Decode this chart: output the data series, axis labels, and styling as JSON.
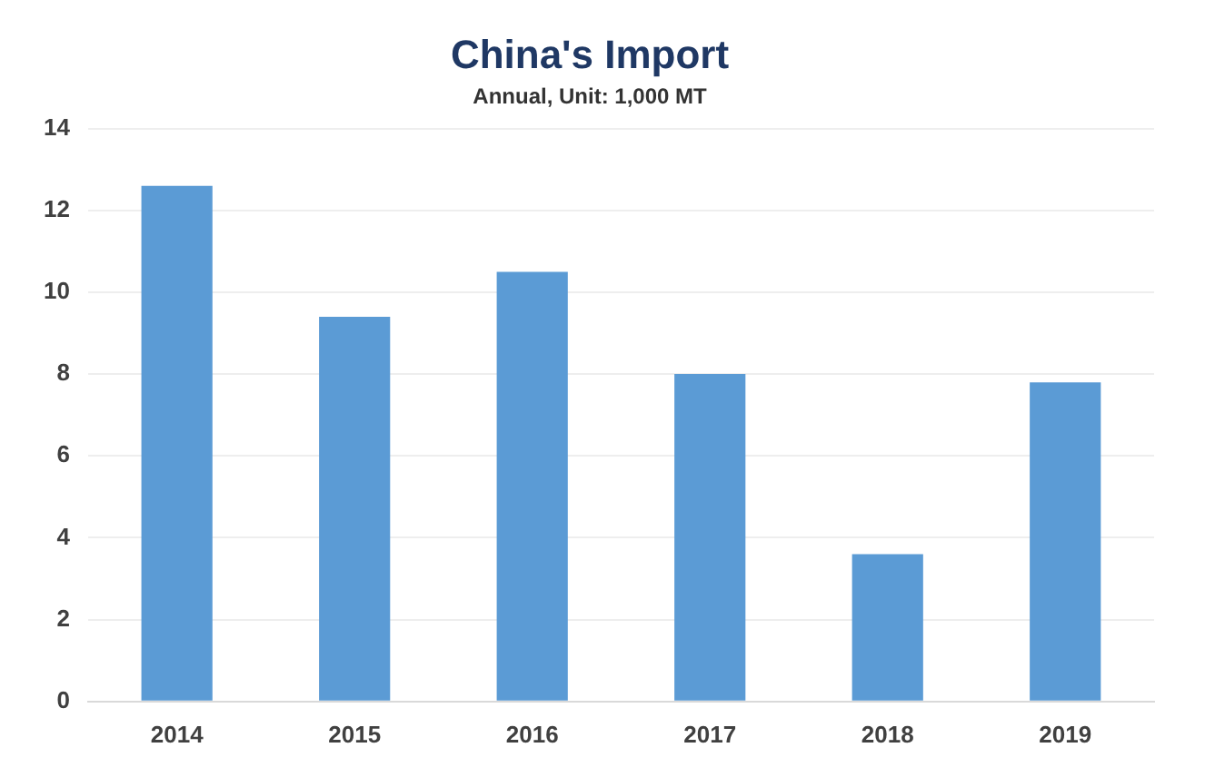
{
  "chart_data": {
    "type": "bar",
    "title": "China's Import",
    "subtitle": "Annual, Unit: 1,000 MT",
    "categories": [
      "2014",
      "2015",
      "2016",
      "2017",
      "2018",
      "2019"
    ],
    "values": [
      12.6,
      9.4,
      10.5,
      8.0,
      3.6,
      7.8
    ],
    "color": "#5b9bd5",
    "ylim": [
      0,
      14
    ],
    "yticks": [
      0,
      2,
      4,
      6,
      8,
      10,
      12,
      14
    ],
    "grid": "y"
  }
}
